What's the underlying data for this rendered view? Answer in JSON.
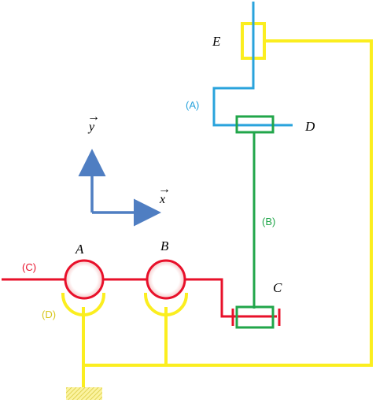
{
  "colors": {
    "blue": "#29a3dc",
    "green": "#21a64a",
    "red": "#e8102a",
    "yellow": "#fbee1f",
    "axis_blue": "#4f7ec2",
    "hatch": "#e8d84a"
  },
  "points": {
    "A": "A",
    "B": "B",
    "C": "C",
    "D": "D",
    "E": "E"
  },
  "bodies": {
    "A_label": "(A)",
    "B_label": "(B)",
    "C_label": "(C)",
    "D_label": "(D)"
  },
  "axes": {
    "x_label": "x",
    "y_label": "y",
    "arrow_glyph": "→"
  }
}
